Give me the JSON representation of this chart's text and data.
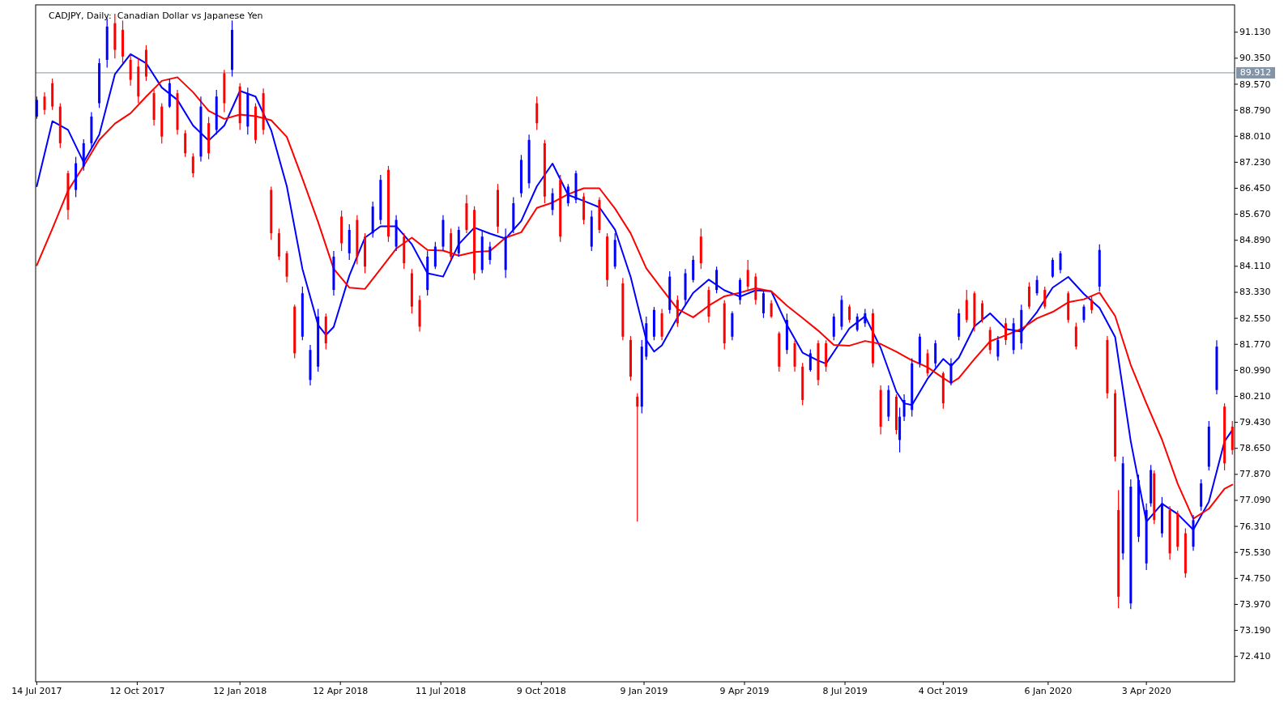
{
  "chart_data": {
    "type": "candlestick",
    "title": "CADJPY, Daily:  Canadian Dollar vs Japanese Yen",
    "xlim": [
      "2017-07-13",
      "2020-06-21"
    ],
    "xticks": [
      {
        "value": "2017-07-14",
        "label": "14 Jul 2017"
      },
      {
        "value": "2017-10-12",
        "label": "12 Oct 2017"
      },
      {
        "value": "2018-01-12",
        "label": "12 Jan 2018"
      },
      {
        "value": "2018-04-12",
        "label": "12 Apr 2018"
      },
      {
        "value": "2018-07-11",
        "label": "11 Jul 2018"
      },
      {
        "value": "2018-10-09",
        "label": "9 Oct 2018"
      },
      {
        "value": "2019-01-09",
        "label": "9 Jan 2019"
      },
      {
        "value": "2019-04-09",
        "label": "9 Apr 2019"
      },
      {
        "value": "2019-07-08",
        "label": "8 Jul 2019"
      },
      {
        "value": "2019-10-04",
        "label": "4 Oct 2019"
      },
      {
        "value": "2020-01-06",
        "label": "6 Jan 2020"
      },
      {
        "value": "2020-04-03",
        "label": "3 Apr 2020"
      }
    ],
    "ylim": [
      71.65,
      91.95
    ],
    "yticks": [
      {
        "value": 91.13,
        "label": "91.130"
      },
      {
        "value": 90.35,
        "label": "90.350"
      },
      {
        "value": 89.57,
        "label": "89.570"
      },
      {
        "value": 88.79,
        "label": "88.790"
      },
      {
        "value": 88.01,
        "label": "88.010"
      },
      {
        "value": 87.23,
        "label": "87.230"
      },
      {
        "value": 86.45,
        "label": "86.450"
      },
      {
        "value": 85.67,
        "label": "85.670"
      },
      {
        "value": 84.89,
        "label": "84.890"
      },
      {
        "value": 84.11,
        "label": "84.110"
      },
      {
        "value": 83.33,
        "label": "83.330"
      },
      {
        "value": 82.55,
        "label": "82.550"
      },
      {
        "value": 81.77,
        "label": "81.770"
      },
      {
        "value": 80.99,
        "label": "80.990"
      },
      {
        "value": 80.21,
        "label": "80.210"
      },
      {
        "value": 79.43,
        "label": "79.430"
      },
      {
        "value": 78.65,
        "label": "78.650"
      },
      {
        "value": 77.87,
        "label": "77.870"
      },
      {
        "value": 77.09,
        "label": "77.090"
      },
      {
        "value": 76.31,
        "label": "76.310"
      },
      {
        "value": 75.53,
        "label": "75.530"
      },
      {
        "value": 74.75,
        "label": "74.750"
      },
      {
        "value": 73.97,
        "label": "73.970"
      },
      {
        "value": 73.19,
        "label": "73.190"
      },
      {
        "value": 72.41,
        "label": "72.410"
      }
    ],
    "ref_lines": [
      {
        "axis": "y",
        "value": 89.912,
        "label": "89.912",
        "color": "#8394a9"
      }
    ],
    "series": [
      {
        "type": "line",
        "color": "#0000ff",
        "x": [
          "2017-07-14",
          "2017-07-28",
          "2017-08-11",
          "2017-08-25",
          "2017-09-08",
          "2017-09-22",
          "2017-10-06",
          "2017-10-20",
          "2017-11-03",
          "2017-11-17",
          "2017-12-01",
          "2017-12-15",
          "2017-12-29",
          "2018-01-12",
          "2018-01-26",
          "2018-02-09",
          "2018-02-23",
          "2018-03-09",
          "2018-03-23",
          "2018-03-30",
          "2018-04-06",
          "2018-04-20",
          "2018-05-04",
          "2018-05-18",
          "2018-06-01",
          "2018-06-15",
          "2018-06-29",
          "2018-07-13",
          "2018-07-27",
          "2018-08-10",
          "2018-08-24",
          "2018-09-07",
          "2018-09-21",
          "2018-10-05",
          "2018-10-19",
          "2018-11-02",
          "2018-11-16",
          "2018-11-30",
          "2018-12-14",
          "2018-12-28",
          "2019-01-11",
          "2019-01-18",
          "2019-01-25",
          "2019-02-08",
          "2019-02-22",
          "2019-03-08",
          "2019-03-22",
          "2019-04-05",
          "2019-04-19",
          "2019-05-03",
          "2019-05-17",
          "2019-05-31",
          "2019-06-14",
          "2019-06-21",
          "2019-06-28",
          "2019-07-12",
          "2019-07-26",
          "2019-08-09",
          "2019-08-23",
          "2019-08-30",
          "2019-09-06",
          "2019-09-20",
          "2019-10-04",
          "2019-10-11",
          "2019-10-18",
          "2019-11-01",
          "2019-11-15",
          "2019-11-29",
          "2019-12-13",
          "2019-12-27",
          "2020-01-10",
          "2020-01-24",
          "2020-02-07",
          "2020-02-21",
          "2020-03-06",
          "2020-03-20",
          "2020-04-03",
          "2020-04-17",
          "2020-05-01",
          "2020-05-15",
          "2020-05-29",
          "2020-06-12",
          "2020-06-19"
        ],
        "values": [
          86.51,
          88.46,
          88.2,
          87.23,
          88.06,
          89.87,
          90.47,
          90.2,
          89.47,
          89.1,
          88.33,
          87.88,
          88.33,
          89.37,
          89.2,
          88.19,
          86.51,
          84.03,
          82.35,
          82.05,
          82.29,
          83.83,
          84.97,
          85.31,
          85.31,
          84.77,
          83.9,
          83.8,
          84.77,
          85.27,
          85.09,
          84.94,
          85.47,
          86.51,
          87.19,
          86.25,
          86.07,
          85.88,
          85.21,
          83.79,
          81.9,
          81.55,
          81.74,
          82.58,
          83.31,
          83.71,
          83.39,
          83.2,
          83.39,
          83.36,
          82.35,
          81.52,
          81.28,
          81.19,
          81.54,
          82.25,
          82.61,
          81.66,
          80.35,
          80.0,
          79.95,
          80.74,
          81.33,
          81.12,
          81.37,
          82.31,
          82.7,
          82.23,
          82.15,
          82.74,
          83.47,
          83.79,
          83.28,
          82.86,
          81.99,
          78.86,
          76.45,
          76.99,
          76.68,
          76.21,
          77.05,
          78.86,
          79.2
        ]
      },
      {
        "type": "line",
        "color": "#ff0000",
        "x": [
          "2017-07-14",
          "2017-07-28",
          "2017-08-11",
          "2017-08-25",
          "2017-09-08",
          "2017-09-22",
          "2017-10-06",
          "2017-10-20",
          "2017-11-03",
          "2017-11-17",
          "2017-12-01",
          "2017-12-15",
          "2017-12-29",
          "2018-01-12",
          "2018-01-26",
          "2018-02-09",
          "2018-02-23",
          "2018-03-09",
          "2018-03-23",
          "2018-04-06",
          "2018-04-20",
          "2018-05-04",
          "2018-05-18",
          "2018-06-01",
          "2018-06-15",
          "2018-06-29",
          "2018-07-13",
          "2018-07-27",
          "2018-08-10",
          "2018-08-24",
          "2018-09-07",
          "2018-09-21",
          "2018-10-05",
          "2018-10-19",
          "2018-11-02",
          "2018-11-16",
          "2018-11-30",
          "2018-12-14",
          "2018-12-28",
          "2019-01-11",
          "2019-01-25",
          "2019-02-08",
          "2019-02-22",
          "2019-03-08",
          "2019-03-22",
          "2019-04-05",
          "2019-04-19",
          "2019-05-03",
          "2019-05-17",
          "2019-05-31",
          "2019-06-14",
          "2019-06-28",
          "2019-07-12",
          "2019-07-26",
          "2019-08-09",
          "2019-08-23",
          "2019-09-06",
          "2019-09-20",
          "2019-10-04",
          "2019-10-11",
          "2019-10-18",
          "2019-11-01",
          "2019-11-15",
          "2019-11-29",
          "2019-12-13",
          "2019-12-27",
          "2020-01-10",
          "2020-01-24",
          "2020-02-07",
          "2020-02-21",
          "2020-03-06",
          "2020-03-20",
          "2020-04-03",
          "2020-04-17",
          "2020-05-01",
          "2020-05-15",
          "2020-05-29",
          "2020-06-12",
          "2020-06-19"
        ],
        "values": [
          84.14,
          85.24,
          86.38,
          87.12,
          87.9,
          88.39,
          88.7,
          89.2,
          89.67,
          89.78,
          89.33,
          88.77,
          88.53,
          88.66,
          88.61,
          88.49,
          87.99,
          86.74,
          85.44,
          84.03,
          83.47,
          83.43,
          84.03,
          84.64,
          84.97,
          84.6,
          84.58,
          84.43,
          84.54,
          84.57,
          84.97,
          85.13,
          85.86,
          86.02,
          86.27,
          86.45,
          86.45,
          85.84,
          85.1,
          84.05,
          83.43,
          82.83,
          82.58,
          82.93,
          83.21,
          83.32,
          83.45,
          83.36,
          82.93,
          82.56,
          82.18,
          81.75,
          81.73,
          81.87,
          81.78,
          81.55,
          81.29,
          81.08,
          80.76,
          80.61,
          80.76,
          81.33,
          81.86,
          82.04,
          82.23,
          82.55,
          82.74,
          83.03,
          83.12,
          83.32,
          82.62,
          81.15,
          80.0,
          78.91,
          77.59,
          76.54,
          76.84,
          77.44,
          77.56
        ]
      },
      {
        "type": "candlestick",
        "x": [
          "2017-07-14",
          "2017-07-21",
          "2017-07-28",
          "2017-08-04",
          "2017-08-11",
          "2017-08-18",
          "2017-08-25",
          "2017-09-01",
          "2017-09-08",
          "2017-09-15",
          "2017-09-22",
          "2017-09-29",
          "2017-10-06",
          "2017-10-13",
          "2017-10-20",
          "2017-10-27",
          "2017-11-03",
          "2017-11-10",
          "2017-11-17",
          "2017-11-24",
          "2017-12-01",
          "2017-12-08",
          "2017-12-15",
          "2017-12-22",
          "2017-12-29",
          "2018-01-05",
          "2018-01-12",
          "2018-01-19",
          "2018-01-26",
          "2018-02-02",
          "2018-02-09",
          "2018-02-16",
          "2018-02-23",
          "2018-03-02",
          "2018-03-09",
          "2018-03-16",
          "2018-03-23",
          "2018-03-30",
          "2018-04-06",
          "2018-04-13",
          "2018-04-20",
          "2018-04-27",
          "2018-05-04",
          "2018-05-11",
          "2018-05-18",
          "2018-05-25",
          "2018-06-01",
          "2018-06-08",
          "2018-06-15",
          "2018-06-22",
          "2018-06-29",
          "2018-07-06",
          "2018-07-13",
          "2018-07-20",
          "2018-07-27",
          "2018-08-03",
          "2018-08-10",
          "2018-08-17",
          "2018-08-24",
          "2018-08-31",
          "2018-09-07",
          "2018-09-14",
          "2018-09-21",
          "2018-09-28",
          "2018-10-05",
          "2018-10-12",
          "2018-10-19",
          "2018-10-26",
          "2018-11-02",
          "2018-11-09",
          "2018-11-16",
          "2018-11-23",
          "2018-11-30",
          "2018-12-07",
          "2018-12-14",
          "2018-12-21",
          "2018-12-28",
          "2019-01-03",
          "2019-01-07",
          "2019-01-11",
          "2019-01-18",
          "2019-01-25",
          "2019-02-01",
          "2019-02-08",
          "2019-02-15",
          "2019-02-22",
          "2019-03-01",
          "2019-03-08",
          "2019-03-15",
          "2019-03-22",
          "2019-03-29",
          "2019-04-05",
          "2019-04-12",
          "2019-04-19",
          "2019-04-26",
          "2019-05-03",
          "2019-05-10",
          "2019-05-17",
          "2019-05-24",
          "2019-05-31",
          "2019-06-07",
          "2019-06-14",
          "2019-06-21",
          "2019-06-28",
          "2019-07-05",
          "2019-07-12",
          "2019-07-19",
          "2019-07-26",
          "2019-08-02",
          "2019-08-09",
          "2019-08-16",
          "2019-08-23",
          "2019-08-26",
          "2019-08-30",
          "2019-09-06",
          "2019-09-13",
          "2019-09-20",
          "2019-09-27",
          "2019-10-04",
          "2019-10-11",
          "2019-10-18",
          "2019-10-25",
          "2019-11-01",
          "2019-11-08",
          "2019-11-15",
          "2019-11-22",
          "2019-11-29",
          "2019-12-06",
          "2019-12-13",
          "2019-12-20",
          "2019-12-27",
          "2020-01-03",
          "2020-01-10",
          "2020-01-17",
          "2020-01-24",
          "2020-01-31",
          "2020-02-07",
          "2020-02-14",
          "2020-02-21",
          "2020-02-28",
          "2020-03-06",
          "2020-03-09",
          "2020-03-13",
          "2020-03-20",
          "2020-03-27",
          "2020-04-03",
          "2020-04-07",
          "2020-04-10",
          "2020-04-17",
          "2020-04-24",
          "2020-05-01",
          "2020-05-08",
          "2020-05-15",
          "2020-05-22",
          "2020-05-29",
          "2020-06-05",
          "2020-06-12",
          "2020-06-19"
        ],
        "ohlc": [
          [
            88.6,
            89.2,
            88.53,
            89.1
          ],
          [
            89.2,
            89.33,
            88.66,
            88.8
          ],
          [
            89.6,
            89.74,
            88.8,
            88.9
          ],
          [
            88.9,
            89.0,
            87.66,
            87.8
          ],
          [
            86.9,
            86.98,
            85.51,
            85.8
          ],
          [
            86.4,
            87.39,
            86.18,
            87.2
          ],
          [
            87.1,
            87.92,
            86.98,
            87.8
          ],
          [
            87.8,
            88.73,
            87.66,
            88.6
          ],
          [
            89.0,
            90.34,
            88.86,
            90.2
          ],
          [
            90.3,
            91.55,
            90.07,
            91.3
          ],
          [
            91.4,
            91.68,
            90.34,
            90.6
          ],
          [
            91.2,
            91.48,
            90.2,
            90.4
          ],
          [
            90.3,
            90.47,
            89.53,
            89.7
          ],
          [
            90.1,
            90.34,
            89.0,
            89.2
          ],
          [
            90.6,
            90.74,
            89.67,
            89.8
          ],
          [
            89.3,
            89.4,
            88.33,
            88.5
          ],
          [
            88.9,
            89.0,
            87.79,
            88.0
          ],
          [
            88.9,
            89.74,
            88.86,
            89.6
          ],
          [
            89.3,
            89.4,
            88.06,
            88.2
          ],
          [
            88.1,
            88.19,
            87.39,
            87.5
          ],
          [
            87.4,
            87.5,
            86.78,
            86.9
          ],
          [
            87.4,
            89.2,
            87.25,
            88.9
          ],
          [
            88.4,
            88.59,
            87.32,
            87.5
          ],
          [
            88.2,
            89.4,
            88.06,
            89.2
          ],
          [
            89.9,
            90.0,
            88.73,
            89.0
          ],
          [
            90.0,
            91.48,
            89.8,
            91.2
          ],
          [
            89.5,
            89.6,
            88.2,
            88.4
          ],
          [
            88.3,
            89.47,
            88.06,
            89.3
          ],
          [
            88.9,
            89.0,
            87.79,
            87.9
          ],
          [
            89.3,
            89.44,
            88.06,
            88.2
          ],
          [
            86.4,
            86.5,
            84.9,
            85.1
          ],
          [
            85.1,
            85.24,
            84.3,
            84.4
          ],
          [
            84.5,
            84.57,
            83.63,
            83.8
          ],
          [
            82.9,
            82.96,
            81.35,
            81.5
          ],
          [
            82.0,
            83.5,
            81.89,
            83.3
          ],
          [
            80.7,
            81.75,
            80.54,
            81.6
          ],
          [
            81.1,
            82.83,
            80.95,
            82.6
          ],
          [
            82.6,
            82.69,
            81.62,
            81.8
          ],
          [
            83.4,
            84.57,
            83.23,
            84.4
          ],
          [
            85.6,
            85.78,
            84.57,
            84.8
          ],
          [
            84.5,
            85.37,
            84.3,
            85.2
          ],
          [
            85.5,
            85.64,
            84.17,
            84.4
          ],
          [
            85.0,
            85.1,
            83.9,
            84.1
          ],
          [
            85.1,
            86.05,
            84.97,
            85.9
          ],
          [
            85.5,
            86.85,
            85.37,
            86.7
          ],
          [
            87.0,
            87.12,
            84.84,
            85.0
          ],
          [
            84.7,
            85.64,
            84.57,
            85.5
          ],
          [
            85.0,
            85.1,
            84.03,
            84.2
          ],
          [
            83.9,
            84.03,
            82.69,
            82.9
          ],
          [
            83.1,
            83.23,
            82.15,
            82.3
          ],
          [
            83.4,
            84.57,
            83.23,
            84.4
          ],
          [
            84.1,
            84.84,
            84.03,
            84.7
          ],
          [
            84.7,
            85.64,
            84.57,
            85.5
          ],
          [
            85.1,
            85.24,
            84.3,
            84.4
          ],
          [
            84.5,
            85.3,
            84.4,
            85.2
          ],
          [
            86.0,
            86.25,
            85.1,
            85.2
          ],
          [
            85.8,
            85.91,
            83.7,
            83.9
          ],
          [
            84.0,
            85.2,
            83.9,
            85.0
          ],
          [
            84.3,
            84.84,
            84.17,
            84.7
          ],
          [
            86.4,
            86.58,
            85.1,
            85.3
          ],
          [
            84.0,
            85.24,
            83.76,
            85.0
          ],
          [
            85.2,
            86.18,
            85.1,
            86.0
          ],
          [
            86.3,
            87.45,
            86.18,
            87.3
          ],
          [
            86.6,
            88.06,
            86.45,
            87.9
          ],
          [
            89.0,
            89.2,
            88.2,
            88.4
          ],
          [
            87.8,
            87.9,
            86.0,
            86.2
          ],
          [
            85.8,
            86.45,
            85.64,
            86.3
          ],
          [
            86.7,
            86.85,
            84.84,
            85.0
          ],
          [
            86.0,
            86.58,
            85.91,
            86.5
          ],
          [
            86.1,
            86.98,
            86.0,
            86.9
          ],
          [
            86.2,
            86.31,
            85.37,
            85.5
          ],
          [
            84.7,
            85.78,
            84.57,
            85.6
          ],
          [
            86.1,
            86.18,
            85.1,
            85.2
          ],
          [
            85.0,
            85.1,
            83.5,
            83.7
          ],
          [
            84.1,
            85.1,
            84.03,
            84.9
          ],
          [
            83.6,
            83.76,
            81.89,
            82.0
          ],
          [
            81.9,
            82.02,
            80.68,
            80.8
          ],
          [
            80.2,
            80.3,
            76.45,
            79.9
          ],
          [
            79.9,
            81.9,
            79.7,
            81.7
          ],
          [
            81.4,
            82.6,
            81.3,
            82.4
          ],
          [
            82.0,
            82.89,
            81.89,
            82.8
          ],
          [
            82.7,
            82.83,
            81.89,
            82.0
          ],
          [
            82.8,
            83.96,
            82.69,
            83.8
          ],
          [
            83.1,
            83.23,
            82.29,
            82.4
          ],
          [
            83.1,
            84.03,
            82.96,
            83.9
          ],
          [
            83.7,
            84.43,
            83.63,
            84.3
          ],
          [
            85.0,
            85.24,
            84.03,
            84.2
          ],
          [
            83.4,
            83.5,
            82.42,
            82.6
          ],
          [
            83.4,
            84.1,
            83.3,
            84.0
          ],
          [
            83.0,
            83.09,
            81.62,
            81.8
          ],
          [
            82.0,
            82.76,
            81.89,
            82.7
          ],
          [
            83.1,
            83.76,
            82.96,
            83.7
          ],
          [
            84.0,
            84.3,
            83.36,
            83.5
          ],
          [
            83.8,
            83.9,
            82.96,
            83.1
          ],
          [
            82.7,
            83.36,
            82.56,
            83.3
          ],
          [
            83.0,
            83.09,
            82.56,
            82.6
          ],
          [
            82.1,
            82.15,
            80.95,
            81.1
          ],
          [
            81.6,
            82.69,
            81.48,
            82.5
          ],
          [
            81.8,
            81.89,
            80.95,
            81.1
          ],
          [
            81.1,
            81.21,
            79.94,
            80.1
          ],
          [
            81.0,
            81.62,
            80.95,
            81.5
          ],
          [
            81.8,
            81.89,
            80.54,
            80.7
          ],
          [
            81.8,
            81.89,
            80.95,
            81.1
          ],
          [
            82.0,
            82.69,
            81.89,
            82.6
          ],
          [
            82.3,
            83.23,
            82.2,
            83.1
          ],
          [
            82.9,
            82.96,
            82.42,
            82.5
          ],
          [
            82.2,
            82.69,
            82.15,
            82.6
          ],
          [
            82.4,
            82.83,
            82.29,
            82.7
          ],
          [
            82.7,
            82.83,
            81.08,
            81.2
          ],
          [
            80.4,
            80.54,
            79.07,
            79.3
          ],
          [
            79.6,
            80.54,
            79.47,
            80.4
          ],
          [
            80.2,
            80.27,
            79.07,
            79.2
          ],
          [
            78.9,
            79.87,
            78.53,
            79.6
          ],
          [
            79.6,
            80.27,
            79.47,
            80.1
          ],
          [
            79.8,
            81.35,
            79.6,
            81.2
          ],
          [
            81.2,
            82.09,
            81.08,
            82.0
          ],
          [
            81.5,
            81.62,
            80.81,
            80.9
          ],
          [
            81.2,
            81.89,
            81.08,
            81.8
          ],
          [
            80.9,
            80.95,
            79.84,
            80.0
          ],
          [
            80.6,
            81.35,
            80.54,
            81.2
          ],
          [
            82.0,
            82.83,
            81.89,
            82.7
          ],
          [
            83.1,
            83.4,
            82.42,
            82.5
          ],
          [
            83.3,
            83.36,
            82.15,
            82.3
          ],
          [
            83.0,
            83.09,
            82.42,
            82.5
          ],
          [
            82.2,
            82.29,
            81.48,
            81.6
          ],
          [
            81.4,
            82.02,
            81.28,
            81.9
          ],
          [
            82.4,
            82.56,
            81.75,
            81.9
          ],
          [
            81.6,
            82.56,
            81.48,
            82.4
          ],
          [
            81.8,
            82.96,
            81.62,
            82.8
          ],
          [
            83.5,
            83.63,
            82.83,
            82.9
          ],
          [
            83.3,
            83.83,
            83.23,
            83.7
          ],
          [
            83.4,
            83.5,
            82.83,
            82.9
          ],
          [
            83.8,
            84.37,
            83.76,
            84.3
          ],
          [
            84.0,
            84.57,
            83.9,
            84.5
          ],
          [
            83.3,
            83.36,
            82.42,
            82.5
          ],
          [
            82.3,
            82.42,
            81.62,
            81.7
          ],
          [
            82.5,
            82.96,
            82.42,
            82.9
          ],
          [
            83.1,
            83.23,
            82.69,
            82.8
          ],
          [
            83.5,
            84.77,
            83.36,
            84.6
          ],
          [
            81.9,
            82.02,
            80.14,
            80.3
          ],
          [
            80.3,
            80.41,
            78.26,
            78.4
          ],
          [
            76.8,
            77.4,
            73.86,
            74.2
          ],
          [
            75.5,
            78.4,
            75.31,
            78.2
          ],
          [
            74.0,
            77.72,
            73.83,
            77.5
          ],
          [
            76.0,
            77.86,
            75.84,
            77.7
          ],
          [
            75.2,
            77.0,
            75.0,
            76.8
          ],
          [
            77.0,
            78.15,
            76.9,
            78.0
          ],
          [
            77.9,
            77.99,
            76.38,
            76.5
          ],
          [
            76.1,
            77.19,
            75.98,
            77.0
          ],
          [
            76.8,
            76.92,
            75.31,
            75.5
          ],
          [
            76.7,
            76.78,
            75.58,
            75.7
          ],
          [
            76.1,
            76.25,
            74.77,
            74.9
          ],
          [
            75.7,
            76.65,
            75.58,
            76.5
          ],
          [
            76.9,
            77.72,
            76.78,
            77.6
          ],
          [
            78.1,
            79.47,
            77.99,
            79.3
          ],
          [
            80.4,
            81.89,
            80.27,
            81.7
          ],
          [
            79.9,
            80.0,
            77.99,
            78.2
          ],
          [
            79.3,
            79.47,
            78.46,
            78.6
          ]
        ],
        "colors": [
          "#0000ff",
          "#ff0000",
          "#ff0000",
          "#ff0000",
          "#ff0000",
          "#0000ff",
          "#0000ff",
          "#0000ff",
          "#0000ff",
          "#0000ff",
          "#ff0000",
          "#ff0000",
          "#ff0000",
          "#ff0000",
          "#ff0000",
          "#ff0000",
          "#ff0000",
          "#0000ff",
          "#ff0000",
          "#ff0000",
          "#ff0000",
          "#0000ff",
          "#ff0000",
          "#0000ff",
          "#ff0000",
          "#0000ff",
          "#ff0000",
          "#0000ff",
          "#ff0000",
          "#ff0000",
          "#ff0000",
          "#ff0000",
          "#ff0000",
          "#ff0000",
          "#0000ff",
          "#0000ff",
          "#0000ff",
          "#ff0000",
          "#0000ff",
          "#ff0000",
          "#0000ff",
          "#ff0000",
          "#ff0000",
          "#0000ff",
          "#0000ff",
          "#ff0000",
          "#0000ff",
          "#ff0000",
          "#ff0000",
          "#ff0000",
          "#0000ff",
          "#0000ff",
          "#0000ff",
          "#ff0000",
          "#0000ff",
          "#ff0000",
          "#ff0000",
          "#0000ff",
          "#0000ff",
          "#ff0000",
          "#0000ff",
          "#0000ff",
          "#0000ff",
          "#0000ff",
          "#ff0000",
          "#ff0000",
          "#0000ff",
          "#ff0000",
          "#0000ff",
          "#0000ff",
          "#ff0000",
          "#0000ff",
          "#ff0000",
          "#ff0000",
          "#0000ff",
          "#ff0000",
          "#ff0000",
          "#ff0000",
          "#0000ff",
          "#0000ff",
          "#0000ff",
          "#ff0000",
          "#0000ff",
          "#ff0000",
          "#0000ff",
          "#0000ff",
          "#ff0000",
          "#ff0000",
          "#0000ff",
          "#ff0000",
          "#0000ff",
          "#0000ff",
          "#ff0000",
          "#ff0000",
          "#0000ff",
          "#ff0000",
          "#ff0000",
          "#0000ff",
          "#ff0000",
          "#ff0000",
          "#0000ff",
          "#ff0000",
          "#ff0000",
          "#0000ff",
          "#0000ff",
          "#ff0000",
          "#0000ff",
          "#0000ff",
          "#ff0000",
          "#ff0000",
          "#0000ff",
          "#ff0000",
          "#0000ff",
          "#0000ff",
          "#0000ff",
          "#0000ff",
          "#ff0000",
          "#0000ff",
          "#ff0000",
          "#0000ff",
          "#0000ff",
          "#ff0000",
          "#ff0000",
          "#ff0000",
          "#ff0000",
          "#0000ff",
          "#ff0000",
          "#0000ff",
          "#0000ff",
          "#ff0000",
          "#0000ff",
          "#ff0000",
          "#0000ff",
          "#0000ff",
          "#ff0000",
          "#ff0000",
          "#0000ff",
          "#ff0000",
          "#0000ff",
          "#ff0000",
          "#ff0000",
          "#ff0000",
          "#0000ff",
          "#0000ff",
          "#0000ff",
          "#0000ff",
          "#0000ff",
          "#ff0000",
          "#0000ff",
          "#ff0000",
          "#ff0000",
          "#ff0000",
          "#0000ff",
          "#0000ff",
          "#0000ff",
          "#0000ff",
          "#ff0000",
          "#ff0000"
        ]
      }
    ]
  }
}
